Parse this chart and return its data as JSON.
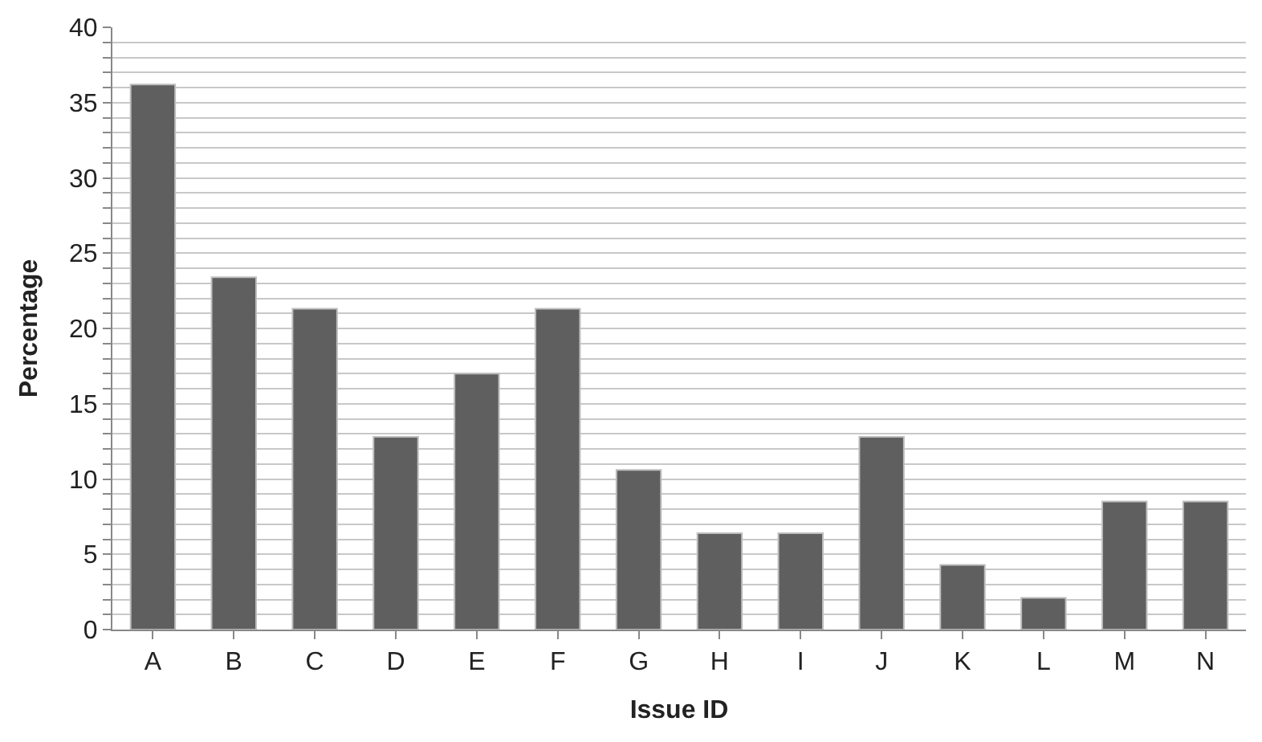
{
  "chart_data": {
    "type": "bar",
    "xlabel": "Issue ID",
    "ylabel": "Percentage",
    "categories": [
      "A",
      "B",
      "C",
      "D",
      "E",
      "F",
      "G",
      "H",
      "I",
      "J",
      "K",
      "L",
      "M",
      "N"
    ],
    "values": [
      36.2,
      23.4,
      21.3,
      12.8,
      17.0,
      21.3,
      10.6,
      6.4,
      6.4,
      12.8,
      4.3,
      2.1,
      8.5,
      8.5
    ],
    "color": "#5f5f5f",
    "ylim": [
      0,
      40
    ],
    "yticks": [
      0,
      {
        "value": 1,
        "label": null
      },
      {
        "value": 2,
        "label": null
      },
      {
        "value": 3,
        "label": null
      },
      {
        "value": 4,
        "label": null
      },
      5,
      {
        "value": 6,
        "label": null
      },
      {
        "value": 7,
        "label": null
      },
      {
        "value": 8,
        "label": null
      },
      {
        "value": 9,
        "label": null
      },
      10,
      {
        "value": 11,
        "label": null
      },
      {
        "value": 12,
        "label": null
      },
      {
        "value": 13,
        "label": null
      },
      {
        "value": 14,
        "label": null
      },
      15,
      {
        "value": 16,
        "label": null
      },
      {
        "value": 17,
        "label": null
      },
      {
        "value": 18,
        "label": null
      },
      {
        "value": 19,
        "label": null
      },
      20,
      {
        "value": 21,
        "label": null
      },
      {
        "value": 22,
        "label": null
      },
      {
        "value": 23,
        "label": null
      },
      {
        "value": 24,
        "label": null
      },
      25,
      {
        "value": 26,
        "label": null
      },
      {
        "value": 27,
        "label": null
      },
      {
        "value": 28,
        "label": null
      },
      {
        "value": 29,
        "label": null
      },
      30,
      {
        "value": 31,
        "label": null
      },
      {
        "value": 32,
        "label": null
      },
      {
        "value": 33,
        "label": null
      },
      {
        "value": 34,
        "label": null
      },
      35,
      {
        "value": 36,
        "label": null
      },
      {
        "value": 37,
        "label": null
      },
      {
        "value": 38,
        "label": null
      },
      {
        "value": 39,
        "label": null
      },
      40
    ],
    "grid": "y"
  }
}
